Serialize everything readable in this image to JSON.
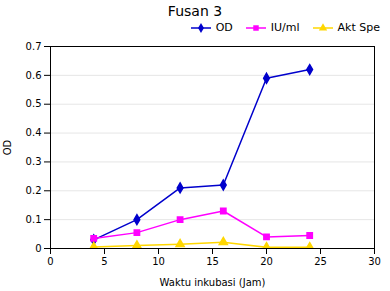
{
  "chart_data": {
    "type": "line",
    "title": "Fusan 3",
    "xlabel": "Waktu inkubasi (Jam)",
    "ylabel": "OD",
    "x": [
      4,
      8,
      12,
      16,
      20,
      24
    ],
    "series": [
      {
        "name": "OD",
        "color": "#0000CC",
        "marker": "diamond",
        "values": [
          0.03,
          0.1,
          0.21,
          0.22,
          0.59,
          0.62
        ]
      },
      {
        "name": "IU/ml",
        "color": "#FF00FF",
        "marker": "square",
        "values": [
          0.035,
          0.055,
          0.1,
          0.13,
          0.04,
          0.045
        ]
      },
      {
        "name": "Akt Spe",
        "color": "#FFD700",
        "marker": "triangle",
        "values": [
          0.005,
          0.01,
          0.015,
          0.022,
          0.004,
          0.004
        ]
      }
    ],
    "xlim": [
      0,
      30
    ],
    "ylim": [
      0,
      0.7
    ],
    "xticks": [
      0,
      5,
      10,
      15,
      20,
      25,
      30
    ],
    "yticks": [
      0,
      0.1,
      0.2,
      0.3,
      0.4,
      0.5,
      0.6,
      0.7
    ],
    "grid": "y",
    "legend": "upper right"
  }
}
